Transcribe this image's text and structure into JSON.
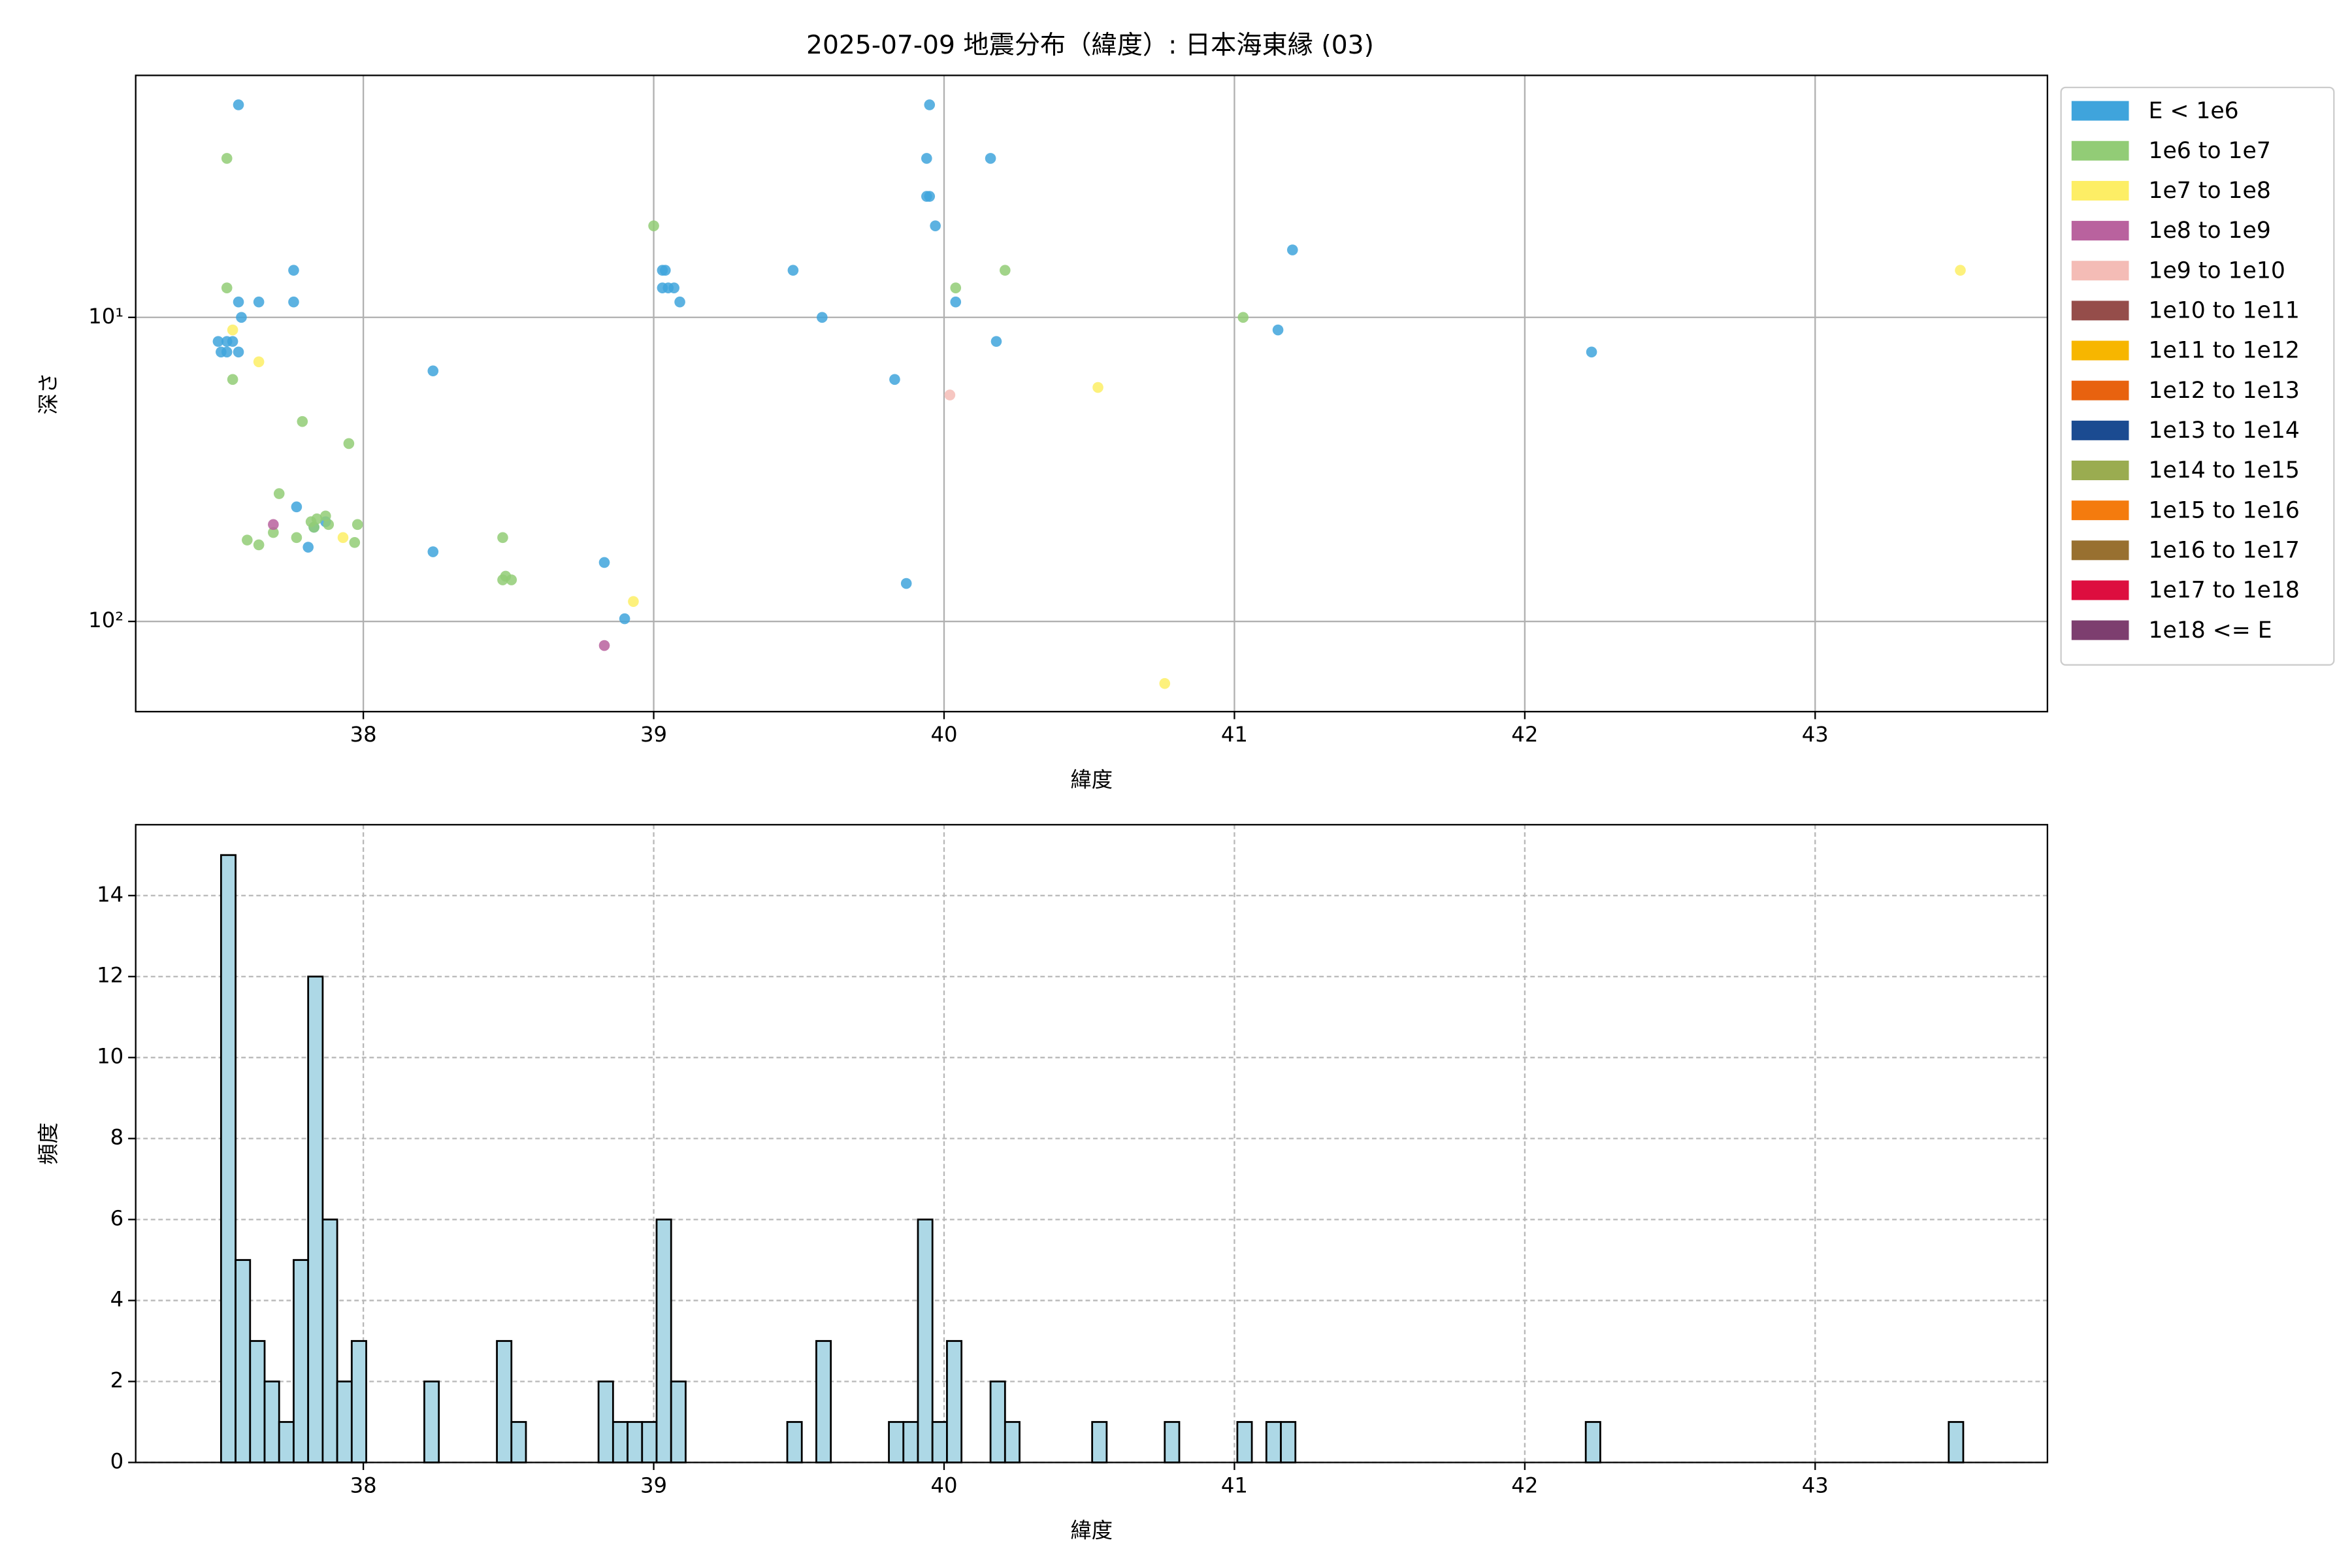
{
  "chart_data": [
    {
      "type": "scatter",
      "title": "2025-07-09 地震分布（緯度）: 日本海東縁 (03)",
      "x_label": "緯度",
      "y_label": "深さ",
      "xlim": [
        37.216,
        43.8
      ],
      "xticks": [
        38,
        39,
        40,
        41,
        42,
        43
      ],
      "ylim": [
        1.6,
        198
      ],
      "y_log": true,
      "y_inverted": true,
      "yticks": [
        {
          "value": 10,
          "label": "10¹"
        },
        {
          "value": 100,
          "label": "10²"
        }
      ],
      "grid": true,
      "grid_linestyle": "solid",
      "legend": "outside upper right",
      "series": [
        {
          "name": "E < 1e6",
          "color": "#3fa4dc",
          "x": [
            37.57,
            37.5,
            37.53,
            37.55,
            37.51,
            37.53,
            37.57,
            37.57,
            37.58,
            37.64,
            37.76,
            37.76,
            37.77,
            37.81,
            37.83,
            37.87,
            38.24,
            38.24,
            38.83,
            38.9,
            39.03,
            39.04,
            39.03,
            39.05,
            39.07,
            39.09,
            39.48,
            39.58,
            39.83,
            39.87,
            39.95,
            39.94,
            39.94,
            39.95,
            39.97,
            40.04,
            40.16,
            40.18,
            41.15,
            41.2,
            42.23
          ],
          "values": [
            2,
            12,
            12,
            12,
            13,
            13,
            13,
            8.9,
            10,
            8.9,
            7,
            8.9,
            42,
            57,
            49,
            47,
            15,
            59,
            64,
            98,
            7,
            7,
            8,
            8,
            8,
            8.9,
            7,
            10,
            16,
            75,
            2,
            3,
            4,
            4,
            5,
            8.9,
            3,
            12,
            11,
            6,
            13
          ]
        },
        {
          "name": "1e6 to 1e7",
          "color": "#92cc76",
          "x": [
            37.53,
            37.53,
            37.55,
            37.6,
            37.64,
            37.69,
            37.71,
            37.77,
            37.79,
            37.82,
            37.84,
            37.87,
            37.83,
            37.88,
            37.95,
            37.97,
            37.98,
            38.48,
            38.48,
            38.49,
            38.51,
            39.0,
            40.04,
            40.21,
            41.03
          ],
          "values": [
            3,
            8,
            16,
            54,
            56,
            51,
            38,
            53,
            22,
            47,
            46,
            45,
            49,
            48,
            26,
            55,
            48,
            53,
            73,
            71,
            73,
            5,
            8,
            7,
            10
          ]
        },
        {
          "name": "1e7 to 1e8",
          "color": "#fdee65",
          "x": [
            37.55,
            37.64,
            37.93,
            38.93,
            40.53,
            40.76,
            43.5
          ],
          "values": [
            11,
            14,
            53,
            86,
            17,
            160,
            7
          ]
        },
        {
          "name": "1e8 to 1e9",
          "color": "#b9629e",
          "x": [
            37.69,
            38.83
          ],
          "values": [
            48,
            120
          ]
        },
        {
          "name": "1e9 to 1e10",
          "color": "#f4bcb6",
          "x": [
            40.02
          ],
          "values": [
            18
          ]
        },
        {
          "name": "1e10 to 1e11",
          "color": "#954d4a",
          "x": [],
          "values": []
        },
        {
          "name": "1e11 to 1e12",
          "color": "#f7b600",
          "x": [],
          "values": []
        },
        {
          "name": "1e12 to 1e13",
          "color": "#e8620f",
          "x": [],
          "values": []
        },
        {
          "name": "1e13 to 1e14",
          "color": "#1b4b91",
          "x": [],
          "values": []
        },
        {
          "name": "1e14 to 1e15",
          "color": "#9aac50",
          "x": [],
          "values": []
        },
        {
          "name": "1e15 to 1e16",
          "color": "#f47b0e",
          "x": [],
          "values": []
        },
        {
          "name": "1e16 to 1e17",
          "color": "#987030",
          "x": [],
          "values": []
        },
        {
          "name": "1e17 to 1e18",
          "color": "#dd0e3f",
          "x": [],
          "values": []
        },
        {
          "name": "1e18 <= E",
          "color": "#7d3e6f",
          "x": [],
          "values": []
        }
      ]
    },
    {
      "type": "histogram",
      "x_label": "緯度",
      "y_label": "頻度",
      "color": "#add8e6",
      "xlim": [
        37.216,
        43.8
      ],
      "xticks": [
        38,
        39,
        40,
        41,
        42,
        43
      ],
      "ylim": [
        0,
        15.75
      ],
      "yticks": [
        0,
        2,
        4,
        6,
        8,
        10,
        12,
        14
      ],
      "grid": true,
      "grid_linestyle": "dashed",
      "bins": [
        37.51,
        37.56,
        37.61,
        37.66,
        37.71,
        37.76,
        37.81,
        37.86,
        37.91,
        37.96,
        38.01,
        38.06,
        38.11,
        38.16,
        38.21,
        38.26,
        38.31,
        38.36,
        38.41,
        38.46,
        38.51,
        38.56,
        38.61,
        38.66,
        38.71,
        38.76,
        38.81,
        38.86,
        38.91,
        38.96,
        39.01,
        39.06,
        39.11,
        39.16,
        39.21,
        39.26,
        39.31,
        39.36,
        39.41,
        39.46,
        39.51,
        39.56,
        39.61,
        39.66,
        39.71,
        39.76,
        39.81,
        39.86,
        39.91,
        39.96,
        40.01,
        40.06,
        40.11,
        40.16,
        40.21,
        40.26,
        40.31,
        40.36,
        40.41,
        40.46,
        40.51,
        40.56,
        40.61,
        40.66,
        40.71,
        40.76,
        40.81,
        40.86,
        40.91,
        40.96,
        41.01,
        41.06,
        41.11,
        41.16,
        41.21,
        41.26,
        41.31,
        41.36,
        41.41,
        41.46,
        41.51,
        41.56,
        41.61,
        41.66,
        41.71,
        41.76,
        41.81,
        41.86,
        41.91,
        41.96,
        42.01,
        42.06,
        42.11,
        42.16,
        42.21,
        42.26,
        42.31,
        42.36,
        42.41,
        42.46,
        42.51,
        42.56,
        42.61,
        42.66,
        42.71,
        42.76,
        42.81,
        42.86,
        42.91,
        42.96,
        43.01,
        43.06,
        43.11,
        43.16,
        43.21,
        43.26,
        43.31,
        43.36,
        43.41,
        43.46,
        43.51
      ],
      "values": [
        15,
        5,
        3,
        2,
        1,
        5,
        12,
        6,
        2,
        3,
        0,
        0,
        0,
        0,
        2,
        0,
        0,
        0,
        0,
        3,
        1,
        0,
        0,
        0,
        0,
        0,
        2,
        1,
        1,
        1,
        6,
        2,
        0,
        0,
        0,
        0,
        0,
        0,
        0,
        1,
        0,
        3,
        0,
        0,
        0,
        0,
        1,
        1,
        6,
        1,
        3,
        0,
        0,
        2,
        1,
        0,
        0,
        0,
        0,
        0,
        1,
        0,
        0,
        0,
        0,
        1,
        0,
        0,
        0,
        0,
        1,
        0,
        1,
        1,
        0,
        0,
        0,
        0,
        0,
        0,
        0,
        0,
        0,
        0,
        0,
        0,
        0,
        0,
        0,
        0,
        0,
        0,
        0,
        0,
        1,
        0,
        0,
        0,
        0,
        0,
        0,
        0,
        0,
        0,
        0,
        0,
        0,
        0,
        0,
        0,
        0,
        0,
        0,
        0,
        0,
        0,
        0,
        0,
        0,
        1
      ]
    }
  ]
}
